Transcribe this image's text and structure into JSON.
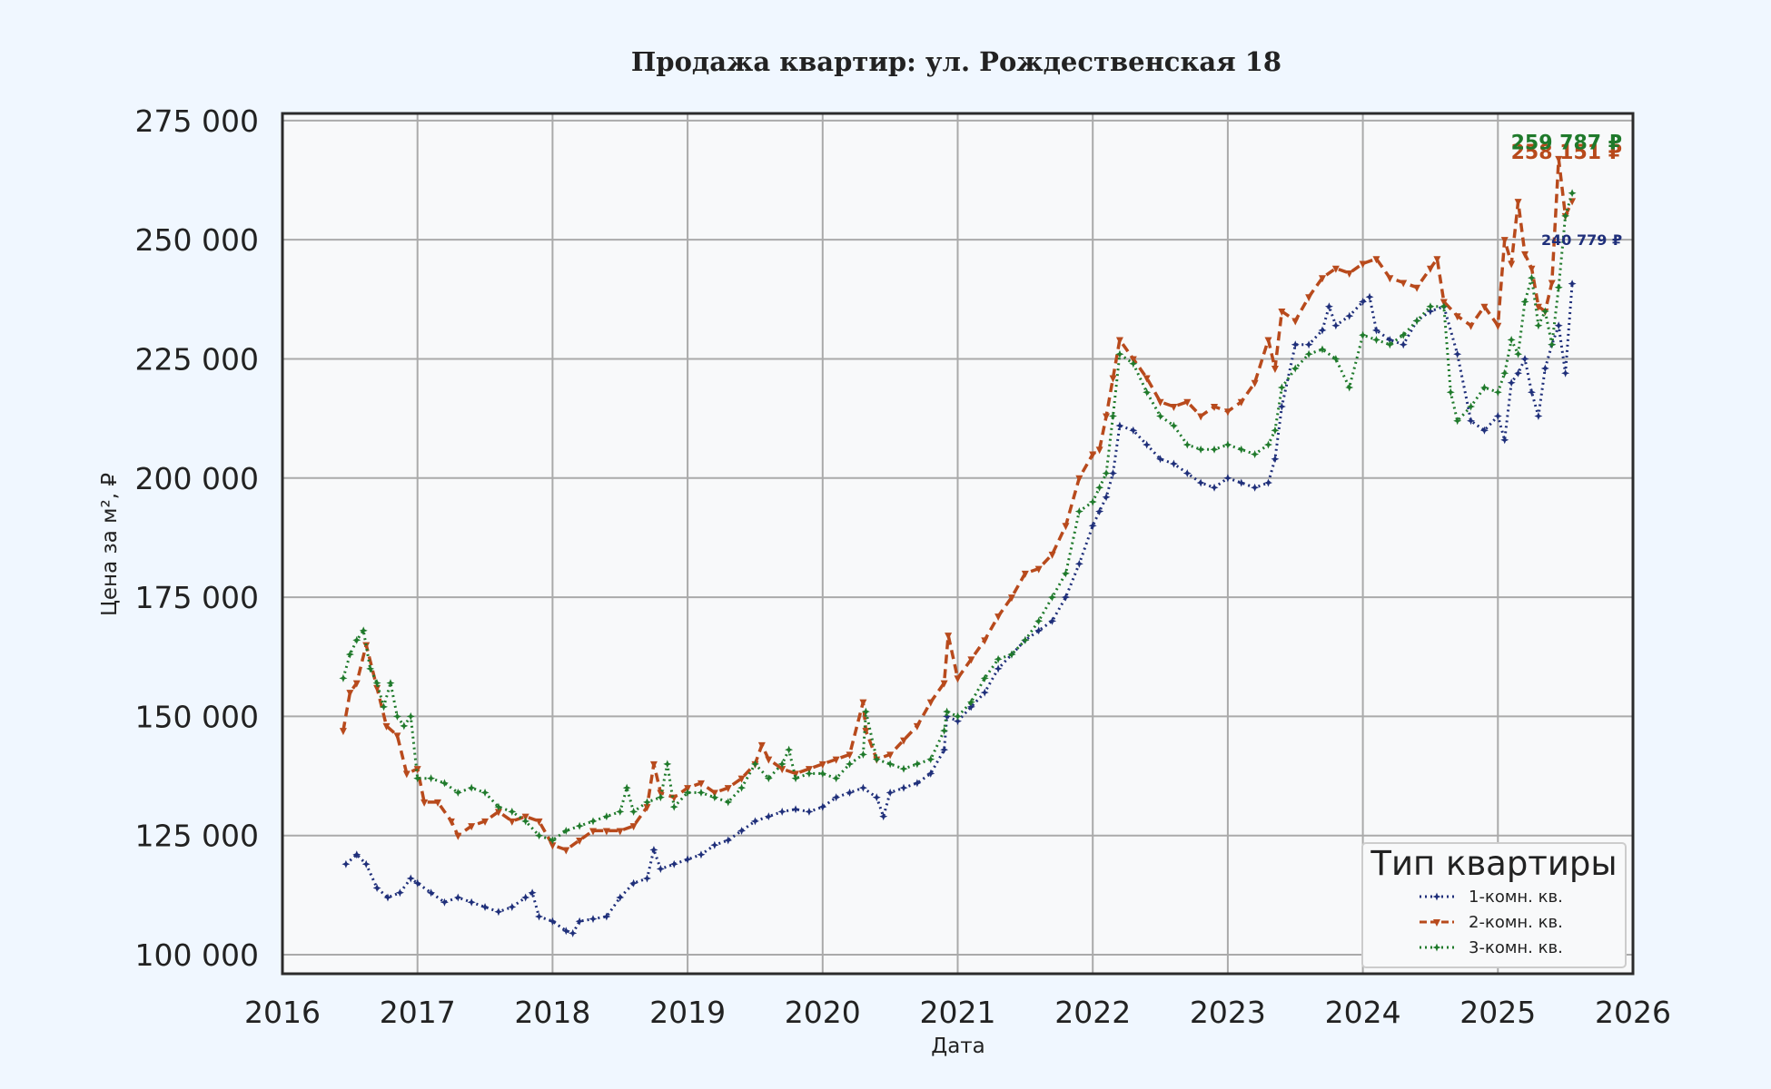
{
  "chart_data": {
    "type": "line",
    "title": "Продажа квартир: ул. Рождественская 18",
    "xlabel": "Дата",
    "ylabel": "Цена за м², ₽",
    "xlim": [
      2016,
      2026
    ],
    "ylim": [
      96000,
      276500
    ],
    "x_ticks": [
      2016,
      2017,
      2018,
      2019,
      2020,
      2021,
      2022,
      2023,
      2024,
      2025,
      2026
    ],
    "x_tick_labels": [
      "2016",
      "2017",
      "2018",
      "2019",
      "2020",
      "2021",
      "2022",
      "2023",
      "2024",
      "2025",
      "2026"
    ],
    "y_ticks": [
      100000,
      125000,
      150000,
      175000,
      200000,
      225000,
      250000,
      275000
    ],
    "y_tick_labels": [
      "100 000",
      "125 000",
      "150 000",
      "175 000",
      "200 000",
      "225 000",
      "250 000",
      "275 000"
    ],
    "grid": true,
    "legend": {
      "title": "Тип квартиры",
      "position": "bottom-right"
    },
    "series": [
      {
        "name": "1-комн. кв.",
        "color": "#1f2f7a",
        "line_style": "dotted",
        "marker": "star",
        "end_label": "240 779 ₽",
        "x": [
          2016.47,
          2016.55,
          2016.62,
          2016.7,
          2016.78,
          2016.87,
          2016.95,
          2017.0,
          2017.1,
          2017.2,
          2017.3,
          2017.4,
          2017.5,
          2017.6,
          2017.7,
          2017.8,
          2017.85,
          2017.9,
          2018.0,
          2018.1,
          2018.15,
          2018.2,
          2018.3,
          2018.4,
          2018.5,
          2018.6,
          2018.7,
          2018.75,
          2018.8,
          2018.9,
          2019.0,
          2019.1,
          2019.2,
          2019.3,
          2019.4,
          2019.5,
          2019.6,
          2019.7,
          2019.8,
          2019.9,
          2020.0,
          2020.1,
          2020.2,
          2020.3,
          2020.4,
          2020.45,
          2020.5,
          2020.6,
          2020.7,
          2020.8,
          2020.9,
          2020.92,
          2021.0,
          2021.1,
          2021.2,
          2021.3,
          2021.4,
          2021.5,
          2021.6,
          2021.7,
          2021.8,
          2021.9,
          2022.0,
          2022.05,
          2022.1,
          2022.15,
          2022.2,
          2022.3,
          2022.4,
          2022.5,
          2022.6,
          2022.7,
          2022.8,
          2022.9,
          2023.0,
          2023.1,
          2023.2,
          2023.3,
          2023.35,
          2023.4,
          2023.5,
          2023.6,
          2023.7,
          2023.75,
          2023.8,
          2023.9,
          2024.0,
          2024.05,
          2024.1,
          2024.2,
          2024.3,
          2024.4,
          2024.5,
          2024.6,
          2024.7,
          2024.8,
          2024.9,
          2025.0,
          2025.05,
          2025.1,
          2025.15,
          2025.2,
          2025.25,
          2025.3,
          2025.35,
          2025.4,
          2025.45,
          2025.5,
          2025.55
        ],
        "y": [
          119000,
          121000,
          119000,
          114000,
          112000,
          113000,
          116000,
          115000,
          113000,
          111000,
          112000,
          111000,
          110000,
          109000,
          110000,
          112000,
          113000,
          108000,
          107000,
          105000,
          104500,
          107000,
          107500,
          108000,
          112000,
          115000,
          116000,
          122000,
          118000,
          119000,
          120000,
          121000,
          123000,
          124000,
          126000,
          128000,
          129000,
          130000,
          130500,
          130000,
          131000,
          133000,
          134000,
          135000,
          133000,
          129000,
          134000,
          135000,
          136000,
          138000,
          143000,
          150000,
          149000,
          152000,
          155000,
          160000,
          163000,
          166000,
          168000,
          170000,
          175000,
          182000,
          190000,
          193000,
          196000,
          201000,
          211000,
          210000,
          207000,
          204000,
          203000,
          201000,
          199000,
          198000,
          200000,
          199000,
          198000,
          199000,
          204000,
          215000,
          228000,
          228000,
          231000,
          236000,
          232000,
          234000,
          237000,
          238000,
          231000,
          229000,
          228000,
          233000,
          235000,
          236000,
          226000,
          212000,
          210000,
          213000,
          208000,
          220000,
          222000,
          225000,
          218000,
          213000,
          223000,
          228000,
          232000,
          222000,
          240779
        ]
      },
      {
        "name": "2-комн. кв.",
        "color": "#b84a1c",
        "line_style": "dashed",
        "marker": "triangle-down",
        "end_label": "258 151 ₽",
        "x": [
          2016.45,
          2016.5,
          2016.55,
          2016.62,
          2016.7,
          2016.77,
          2016.85,
          2016.92,
          2017.0,
          2017.05,
          2017.15,
          2017.25,
          2017.3,
          2017.4,
          2017.5,
          2017.6,
          2017.7,
          2017.8,
          2017.9,
          2018.0,
          2018.1,
          2018.2,
          2018.3,
          2018.4,
          2018.5,
          2018.6,
          2018.7,
          2018.75,
          2018.8,
          2018.9,
          2019.0,
          2019.1,
          2019.2,
          2019.3,
          2019.4,
          2019.5,
          2019.55,
          2019.6,
          2019.7,
          2019.8,
          2019.9,
          2020.0,
          2020.1,
          2020.2,
          2020.3,
          2020.32,
          2020.4,
          2020.5,
          2020.6,
          2020.7,
          2020.8,
          2020.9,
          2020.93,
          2021.0,
          2021.1,
          2021.2,
          2021.3,
          2021.4,
          2021.5,
          2021.6,
          2021.7,
          2021.8,
          2021.9,
          2022.0,
          2022.05,
          2022.1,
          2022.15,
          2022.2,
          2022.3,
          2022.4,
          2022.5,
          2022.6,
          2022.7,
          2022.8,
          2022.9,
          2023.0,
          2023.1,
          2023.2,
          2023.3,
          2023.35,
          2023.4,
          2023.5,
          2023.6,
          2023.7,
          2023.8,
          2023.9,
          2024.0,
          2024.1,
          2024.2,
          2024.3,
          2024.4,
          2024.5,
          2024.55,
          2024.6,
          2024.7,
          2024.8,
          2024.9,
          2025.0,
          2025.05,
          2025.1,
          2025.15,
          2025.2,
          2025.25,
          2025.3,
          2025.35,
          2025.4,
          2025.45,
          2025.5,
          2025.55
        ],
        "y": [
          147000,
          155000,
          157000,
          165000,
          156000,
          148000,
          146000,
          138000,
          139000,
          132000,
          132000,
          128000,
          125000,
          127000,
          128000,
          130000,
          128000,
          129000,
          128000,
          123000,
          122000,
          124000,
          126000,
          126000,
          126000,
          127000,
          131000,
          140000,
          134000,
          133000,
          135000,
          136000,
          134000,
          135000,
          137000,
          140000,
          144000,
          141000,
          139000,
          138000,
          139000,
          140000,
          141000,
          142000,
          153000,
          147000,
          141000,
          142000,
          145000,
          148000,
          153000,
          157000,
          167000,
          158000,
          162000,
          166000,
          171000,
          175000,
          180000,
          181000,
          184000,
          190000,
          200000,
          205000,
          206000,
          213000,
          221000,
          229000,
          225000,
          221000,
          216000,
          215000,
          216000,
          213000,
          215000,
          214000,
          216000,
          220000,
          229000,
          223000,
          235000,
          233000,
          238000,
          242000,
          244000,
          243000,
          245000,
          246000,
          242000,
          241000,
          240000,
          244000,
          246000,
          237000,
          234000,
          232000,
          236000,
          232000,
          250000,
          245000,
          258000,
          247000,
          244000,
          236000,
          235000,
          241000,
          267000,
          255000,
          258151
        ]
      },
      {
        "name": "3-комн. кв.",
        "color": "#1f7a2b",
        "line_style": "dotted",
        "marker": "star",
        "end_label": "259 787 ₽",
        "x": [
          2016.45,
          2016.5,
          2016.55,
          2016.6,
          2016.65,
          2016.7,
          2016.75,
          2016.8,
          2016.85,
          2016.9,
          2016.95,
          2017.0,
          2017.1,
          2017.2,
          2017.3,
          2017.4,
          2017.5,
          2017.6,
          2017.7,
          2017.8,
          2017.9,
          2018.0,
          2018.1,
          2018.2,
          2018.3,
          2018.4,
          2018.5,
          2018.55,
          2018.6,
          2018.7,
          2018.8,
          2018.85,
          2018.9,
          2019.0,
          2019.1,
          2019.2,
          2019.3,
          2019.4,
          2019.5,
          2019.6,
          2019.7,
          2019.75,
          2019.8,
          2019.9,
          2020.0,
          2020.1,
          2020.2,
          2020.3,
          2020.32,
          2020.4,
          2020.5,
          2020.6,
          2020.7,
          2020.8,
          2020.9,
          2020.92,
          2021.0,
          2021.1,
          2021.2,
          2021.3,
          2021.4,
          2021.5,
          2021.6,
          2021.7,
          2021.8,
          2021.9,
          2022.0,
          2022.05,
          2022.1,
          2022.15,
          2022.2,
          2022.3,
          2022.4,
          2022.5,
          2022.6,
          2022.7,
          2022.8,
          2022.9,
          2023.0,
          2023.1,
          2023.2,
          2023.3,
          2023.35,
          2023.4,
          2023.5,
          2023.6,
          2023.7,
          2023.8,
          2023.9,
          2024.0,
          2024.1,
          2024.2,
          2024.3,
          2024.4,
          2024.5,
          2024.6,
          2024.65,
          2024.7,
          2024.8,
          2024.9,
          2025.0,
          2025.05,
          2025.1,
          2025.15,
          2025.2,
          2025.25,
          2025.3,
          2025.35,
          2025.4,
          2025.45,
          2025.5,
          2025.55
        ],
        "y": [
          158000,
          163000,
          166000,
          168000,
          160000,
          157000,
          152000,
          157000,
          150000,
          148000,
          150000,
          137000,
          137000,
          136000,
          134000,
          135000,
          134000,
          131000,
          130000,
          128000,
          125000,
          124000,
          126000,
          127000,
          128000,
          129000,
          130000,
          135000,
          130000,
          132000,
          133000,
          140000,
          131000,
          134000,
          134000,
          133000,
          132000,
          135000,
          140000,
          137000,
          140000,
          143000,
          137000,
          138000,
          138000,
          137000,
          140000,
          142000,
          151000,
          141000,
          140000,
          139000,
          140000,
          141000,
          147000,
          151000,
          150000,
          153000,
          158000,
          162000,
          163000,
          166000,
          170000,
          175000,
          180000,
          193000,
          195000,
          198000,
          201000,
          213000,
          226000,
          224000,
          218000,
          213000,
          211000,
          207000,
          206000,
          206000,
          207000,
          206000,
          205000,
          207000,
          210000,
          219000,
          223000,
          226000,
          227000,
          225000,
          219000,
          230000,
          229000,
          228000,
          230000,
          233000,
          236000,
          236000,
          218000,
          212000,
          215000,
          219000,
          218000,
          222000,
          229000,
          226000,
          237000,
          242000,
          232000,
          235000,
          228000,
          240000,
          255000,
          259787
        ]
      }
    ]
  }
}
